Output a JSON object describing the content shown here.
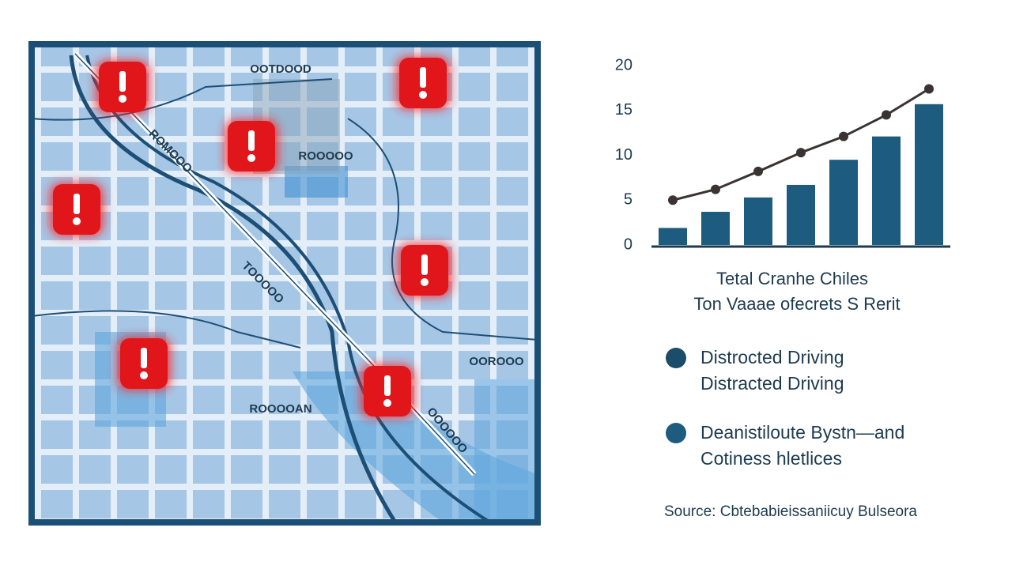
{
  "chart_data": {
    "type": "bar",
    "title": "Tetal Cranhe Chiles",
    "subtitle": "Ton Vaaae ofecrets S Rerit",
    "categories": [
      null,
      null,
      null,
      null,
      null,
      null,
      null
    ],
    "series": [
      {
        "name": "Distrocted Driving\nDistracted Driving",
        "type": "bar",
        "color": "#1d5b7f",
        "values": [
          1.9,
          3.7,
          5.3,
          6.7,
          9.5,
          12.1,
          15.7
        ]
      },
      {
        "name": "Deanistiloute Bystn—and\nCotiness hletlices",
        "type": "line",
        "color": "#3b3333",
        "values": [
          5.0,
          6.2,
          8.2,
          10.3,
          12.1,
          14.5,
          17.4
        ]
      }
    ],
    "legend_colors": [
      "#1b4d6b",
      "#1d5b7f"
    ],
    "ylim": [
      0,
      20
    ],
    "yticks": [
      0,
      5,
      10,
      15,
      20
    ],
    "grid": false,
    "source": "Source: Cbtebabieissaniicuy Bulseora"
  },
  "map": {
    "labels": [
      "OOTDOOD",
      "ROOOOO",
      "ROMOOO",
      "TOOOOO",
      "OOROOO",
      "ROOOOAN",
      "OOOOOO"
    ]
  }
}
